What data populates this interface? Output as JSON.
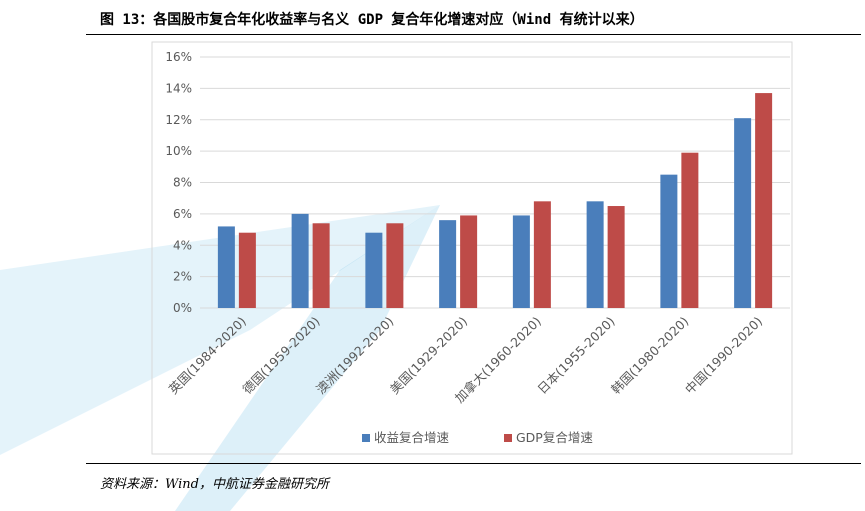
{
  "header": {
    "title": "图 13：各国股市复合年化收益率与名义 GDP 复合年化增速对应（Wind 有统计以来）"
  },
  "footer": {
    "source": "资料来源：Wind，中航证券金融研究所"
  },
  "colors": {
    "series1": "#4a7ebb",
    "series2": "#be4b48",
    "grid": "#d9d9d9",
    "text": "#595959",
    "watermark": "#2ea4da"
  },
  "chart_data": {
    "type": "bar",
    "categories": [
      "英国(1984-2020)",
      "德国(1959-2020)",
      "澳洲(1992-2020)",
      "美国(1929-2020)",
      "加拿大(1960-2020)",
      "日本(1955-2020)",
      "韩国(1980-2020)",
      "中国(1990-2020)"
    ],
    "series": [
      {
        "name": "收益复合增速",
        "values": [
          5.2,
          6.0,
          4.8,
          5.6,
          5.9,
          6.8,
          8.5,
          12.1
        ]
      },
      {
        "name": "GDP复合增速",
        "values": [
          4.8,
          5.4,
          5.4,
          5.9,
          6.8,
          6.5,
          9.9,
          13.7
        ]
      }
    ],
    "yticks": [
      "0%",
      "2%",
      "4%",
      "6%",
      "8%",
      "10%",
      "12%",
      "14%",
      "16%"
    ],
    "ylim": [
      0,
      16
    ],
    "grid": true,
    "legend_position": "bottom"
  }
}
